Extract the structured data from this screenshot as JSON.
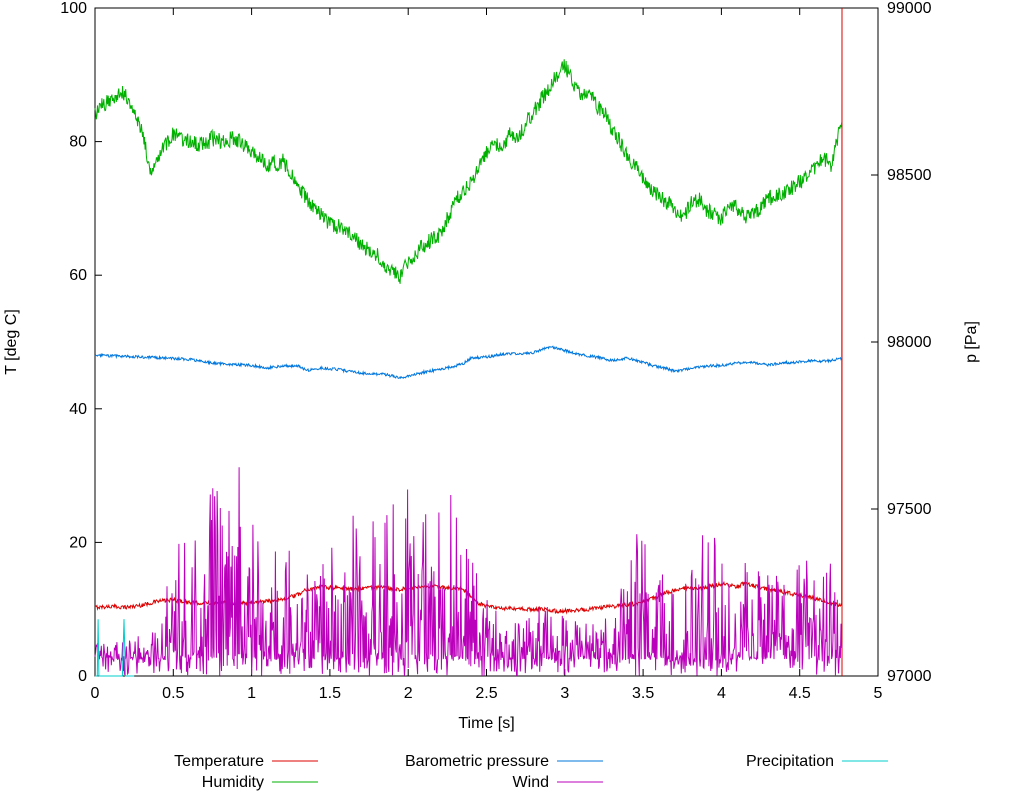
{
  "chart_data": {
    "type": "line",
    "title": "",
    "xlabel": "Time [s]",
    "ylabel_left": "T [deg C]",
    "ylabel_right": "p [Pa]",
    "xlim": [
      0,
      5
    ],
    "ylim_left": [
      0,
      100
    ],
    "ylim_right": [
      97000,
      99000
    ],
    "xticks": [
      0,
      0.5,
      1,
      1.5,
      2,
      2.5,
      3,
      3.5,
      4,
      4.5,
      5
    ],
    "xtick_labels": [
      "0",
      "0.5",
      "1",
      "1.5",
      "2",
      "2.5",
      "3",
      "3.5",
      "4",
      "4.5",
      "5"
    ],
    "yticks_left": [
      0,
      20,
      40,
      60,
      80,
      100
    ],
    "ytick_left_labels": [
      "0",
      "20",
      "40",
      "60",
      "80",
      "100"
    ],
    "yticks_right": [
      97000,
      97500,
      98000,
      98500,
      99000
    ],
    "ytick_right_labels": [
      "97000",
      "97500",
      "98000",
      "98500",
      "99000"
    ],
    "grid": false,
    "background": "#ffffff",
    "axis_color": "#000000",
    "legend_position": "below",
    "x_end": 4.77,
    "series": [
      {
        "name": "Temperature",
        "color": "#dd0000",
        "axis": "left",
        "style": "noisy",
        "noise": 0.3,
        "end_spike": true,
        "keypoints": [
          [
            0,
            10.3
          ],
          [
            0.1,
            10.4
          ],
          [
            0.2,
            10.3
          ],
          [
            0.3,
            10.6
          ],
          [
            0.4,
            11.2
          ],
          [
            0.5,
            11.4
          ],
          [
            0.6,
            11.0
          ],
          [
            0.7,
            10.9
          ],
          [
            0.8,
            11.1
          ],
          [
            0.9,
            10.9
          ],
          [
            1.0,
            11.0
          ],
          [
            1.1,
            11.2
          ],
          [
            1.2,
            11.5
          ],
          [
            1.3,
            12.2
          ],
          [
            1.35,
            13.0
          ],
          [
            1.45,
            13.3
          ],
          [
            1.55,
            13.2
          ],
          [
            1.65,
            13.0
          ],
          [
            1.75,
            13.3
          ],
          [
            1.85,
            13.2
          ],
          [
            1.95,
            13.0
          ],
          [
            2.05,
            13.2
          ],
          [
            2.15,
            13.4
          ],
          [
            2.25,
            13.2
          ],
          [
            2.35,
            13.0
          ],
          [
            2.4,
            12.0
          ],
          [
            2.45,
            10.8
          ],
          [
            2.55,
            10.2
          ],
          [
            2.7,
            10.0
          ],
          [
            2.85,
            10.0
          ],
          [
            2.95,
            9.7
          ],
          [
            3.05,
            9.8
          ],
          [
            3.15,
            10.0
          ],
          [
            3.3,
            10.4
          ],
          [
            3.45,
            10.8
          ],
          [
            3.55,
            11.5
          ],
          [
            3.65,
            12.5
          ],
          [
            3.75,
            13.2
          ],
          [
            3.85,
            13.0
          ],
          [
            3.95,
            13.5
          ],
          [
            4.0,
            13.8
          ],
          [
            4.1,
            13.4
          ],
          [
            4.15,
            13.9
          ],
          [
            4.25,
            13.2
          ],
          [
            4.35,
            12.8
          ],
          [
            4.45,
            12.3
          ],
          [
            4.55,
            11.9
          ],
          [
            4.65,
            11.2
          ],
          [
            4.72,
            10.8
          ],
          [
            4.77,
            10.5
          ]
        ]
      },
      {
        "name": "Humidity",
        "color": "#00b000",
        "axis": "left",
        "style": "noisy",
        "noise": 1.2,
        "keypoints": [
          [
            0,
            84
          ],
          [
            0.05,
            85.5
          ],
          [
            0.1,
            86
          ],
          [
            0.15,
            87.5
          ],
          [
            0.2,
            87
          ],
          [
            0.25,
            84
          ],
          [
            0.3,
            82
          ],
          [
            0.35,
            75.5
          ],
          [
            0.4,
            78
          ],
          [
            0.45,
            79.5
          ],
          [
            0.5,
            81
          ],
          [
            0.6,
            80
          ],
          [
            0.7,
            79.5
          ],
          [
            0.75,
            80.5
          ],
          [
            0.8,
            80
          ],
          [
            0.9,
            80.5
          ],
          [
            1.0,
            78.5
          ],
          [
            1.1,
            76.5
          ],
          [
            1.2,
            77
          ],
          [
            1.3,
            73
          ],
          [
            1.4,
            70
          ],
          [
            1.5,
            67.5
          ],
          [
            1.6,
            67
          ],
          [
            1.7,
            64.5
          ],
          [
            1.8,
            63
          ],
          [
            1.9,
            60.5
          ],
          [
            1.95,
            59.8
          ],
          [
            2.0,
            62
          ],
          [
            2.1,
            64.5
          ],
          [
            2.2,
            66
          ],
          [
            2.3,
            71
          ],
          [
            2.4,
            74
          ],
          [
            2.5,
            78.5
          ],
          [
            2.55,
            80
          ],
          [
            2.6,
            78.5
          ],
          [
            2.65,
            81.5
          ],
          [
            2.7,
            80.5
          ],
          [
            2.8,
            84.5
          ],
          [
            2.9,
            88
          ],
          [
            2.95,
            90
          ],
          [
            3.0,
            91.5
          ],
          [
            3.05,
            89
          ],
          [
            3.1,
            87
          ],
          [
            3.15,
            87.5
          ],
          [
            3.2,
            85.5
          ],
          [
            3.25,
            84.5
          ],
          [
            3.3,
            82
          ],
          [
            3.4,
            78
          ],
          [
            3.5,
            74.5
          ],
          [
            3.55,
            72.5
          ],
          [
            3.6,
            72
          ],
          [
            3.7,
            70
          ],
          [
            3.75,
            68.5
          ],
          [
            3.8,
            70.5
          ],
          [
            3.85,
            71.5
          ],
          [
            3.9,
            70
          ],
          [
            3.95,
            69
          ],
          [
            4.0,
            68.5
          ],
          [
            4.05,
            71
          ],
          [
            4.1,
            70
          ],
          [
            4.15,
            68.8
          ],
          [
            4.2,
            69.5
          ],
          [
            4.25,
            70
          ],
          [
            4.3,
            71.5
          ],
          [
            4.35,
            72
          ],
          [
            4.4,
            72.5
          ],
          [
            4.45,
            73
          ],
          [
            4.5,
            74
          ],
          [
            4.55,
            75
          ],
          [
            4.6,
            76
          ],
          [
            4.65,
            77.5
          ],
          [
            4.7,
            76.5
          ],
          [
            4.73,
            79
          ],
          [
            4.77,
            84
          ]
        ]
      },
      {
        "name": "Barometric pressure",
        "color": "#0077dd",
        "axis": "right",
        "style": "noisy",
        "noise": 4,
        "keypoints": [
          [
            0,
            97960
          ],
          [
            0.15,
            97958
          ],
          [
            0.3,
            97955
          ],
          [
            0.45,
            97952
          ],
          [
            0.6,
            97948
          ],
          [
            0.7,
            97940
          ],
          [
            0.8,
            97935
          ],
          [
            0.9,
            97932
          ],
          [
            1.0,
            97930
          ],
          [
            1.1,
            97923
          ],
          [
            1.2,
            97928
          ],
          [
            1.3,
            97930
          ],
          [
            1.35,
            97915
          ],
          [
            1.45,
            97922
          ],
          [
            1.55,
            97918
          ],
          [
            1.65,
            97910
          ],
          [
            1.75,
            97905
          ],
          [
            1.85,
            97903
          ],
          [
            1.95,
            97893
          ],
          [
            2.0,
            97898
          ],
          [
            2.1,
            97910
          ],
          [
            2.2,
            97918
          ],
          [
            2.3,
            97928
          ],
          [
            2.35,
            97935
          ],
          [
            2.4,
            97952
          ],
          [
            2.5,
            97955
          ],
          [
            2.6,
            97963
          ],
          [
            2.7,
            97965
          ],
          [
            2.8,
            97968
          ],
          [
            2.9,
            97985
          ],
          [
            2.95,
            97982
          ],
          [
            3.0,
            97975
          ],
          [
            3.1,
            97962
          ],
          [
            3.2,
            97955
          ],
          [
            3.3,
            97945
          ],
          [
            3.4,
            97952
          ],
          [
            3.5,
            97940
          ],
          [
            3.55,
            97930
          ],
          [
            3.65,
            97920
          ],
          [
            3.7,
            97913
          ],
          [
            3.8,
            97920
          ],
          [
            3.9,
            97928
          ],
          [
            4.0,
            97930
          ],
          [
            4.1,
            97938
          ],
          [
            4.2,
            97938
          ],
          [
            4.3,
            97932
          ],
          [
            4.4,
            97938
          ],
          [
            4.5,
            97940
          ],
          [
            4.6,
            97945
          ],
          [
            4.65,
            97942
          ],
          [
            4.7,
            97945
          ],
          [
            4.77,
            97950
          ]
        ]
      },
      {
        "name": "Wind",
        "color": "#bb00bb",
        "axis": "left",
        "style": "spiky",
        "base": 2.5,
        "keypoints": [
          [
            0,
            6
          ],
          [
            0.1,
            5
          ],
          [
            0.2,
            6
          ],
          [
            0.3,
            6
          ],
          [
            0.4,
            8
          ],
          [
            0.45,
            14
          ],
          [
            0.5,
            24
          ],
          [
            0.6,
            20
          ],
          [
            0.7,
            22
          ],
          [
            0.75,
            30
          ],
          [
            0.85,
            26
          ],
          [
            0.9,
            34
          ],
          [
            1.0,
            24
          ],
          [
            1.1,
            20
          ],
          [
            1.2,
            18
          ],
          [
            1.3,
            20
          ],
          [
            1.4,
            16
          ],
          [
            1.5,
            22
          ],
          [
            1.6,
            24
          ],
          [
            1.7,
            26
          ],
          [
            1.8,
            24
          ],
          [
            1.9,
            28
          ],
          [
            2.0,
            30
          ],
          [
            2.1,
            26
          ],
          [
            2.2,
            28
          ],
          [
            2.3,
            28
          ],
          [
            2.4,
            24
          ],
          [
            2.45,
            16
          ],
          [
            2.5,
            12
          ],
          [
            2.6,
            10
          ],
          [
            2.7,
            9
          ],
          [
            2.8,
            10
          ],
          [
            2.9,
            11
          ],
          [
            3.0,
            9
          ],
          [
            3.1,
            8
          ],
          [
            3.2,
            9
          ],
          [
            3.3,
            10
          ],
          [
            3.35,
            14
          ],
          [
            3.4,
            18
          ],
          [
            3.5,
            24
          ],
          [
            3.6,
            18
          ],
          [
            3.7,
            20
          ],
          [
            3.8,
            18
          ],
          [
            3.9,
            22
          ],
          [
            4.0,
            20
          ],
          [
            4.1,
            18
          ],
          [
            4.2,
            16
          ],
          [
            4.3,
            17
          ],
          [
            4.4,
            15
          ],
          [
            4.5,
            19
          ],
          [
            4.6,
            16
          ],
          [
            4.7,
            18
          ],
          [
            4.77,
            12
          ]
        ]
      },
      {
        "name": "Precipitation",
        "color": "#00cccc",
        "axis": "left",
        "style": "linear",
        "keypoints": [
          [
            0,
            0
          ],
          [
            0.015,
            0
          ],
          [
            0.02,
            8.5
          ],
          [
            0.025,
            0
          ],
          [
            0.175,
            0
          ],
          [
            0.185,
            8.5
          ],
          [
            0.195,
            0
          ],
          [
            0.25,
            0
          ]
        ]
      }
    ],
    "legend": {
      "columns": [
        [
          "Temperature",
          "Humidity"
        ],
        [
          "Barometric pressure",
          "Wind"
        ],
        [
          "Precipitation"
        ]
      ]
    }
  }
}
